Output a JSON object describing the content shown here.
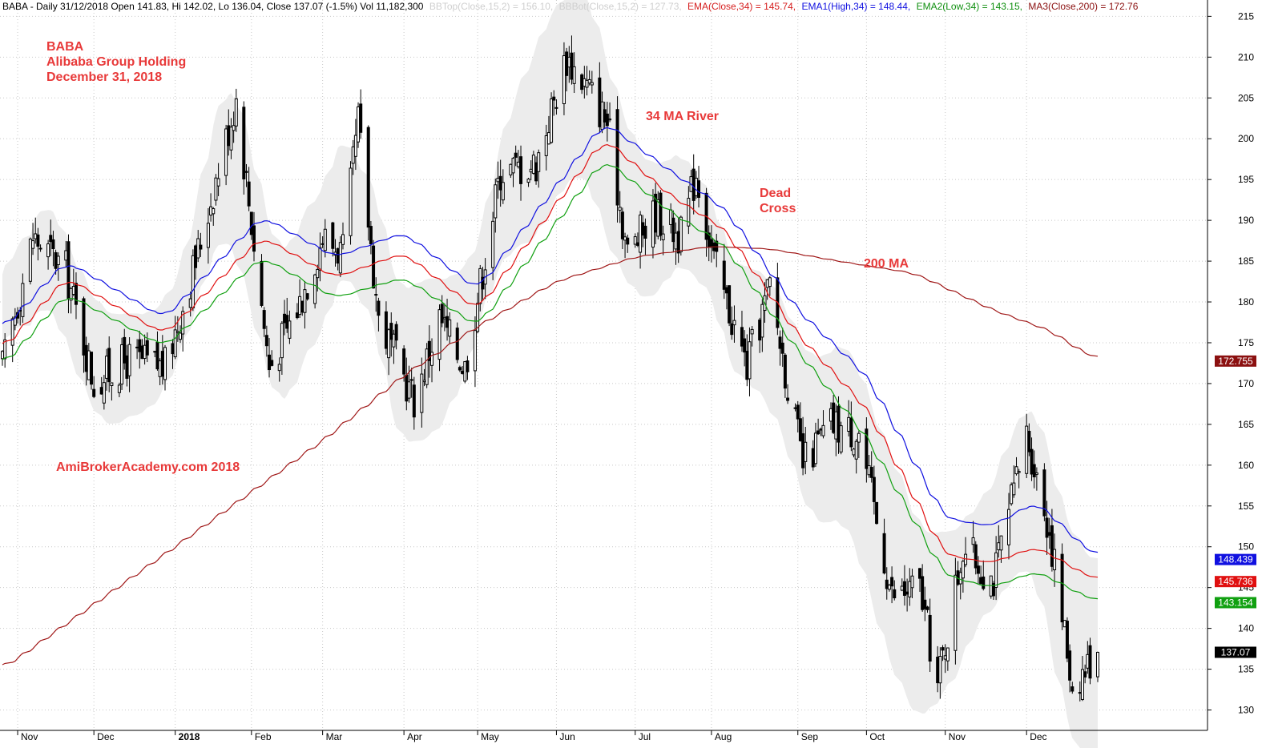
{
  "header": {
    "prefix": "BABA - Daily 31/12/2018 Open 141.83, Hi 142.02, Lo 136.04, Close 137.07 (-1.5%) Vol 11,182,300",
    "parts": [
      {
        "text": "BBTop(Close,15,2) = 156.10,",
        "color": "#cfcfcf"
      },
      {
        "text": "BBBot(Close,15,2) = 127.73,",
        "color": "#cfcfcf"
      },
      {
        "text": "EMA(Close,34) = 145.74,",
        "color": "#d62020"
      },
      {
        "text": "EMA1(High,34) = 148.44,",
        "color": "#1010e0"
      },
      {
        "text": "EMA2(Low,34) = 143.15,",
        "color": "#109010"
      },
      {
        "text": "MA3(Close,200) = 172.76",
        "color": "#8b1010"
      }
    ]
  },
  "annotations": {
    "title_lines": [
      "BABA",
      "Alibaba Group Holding",
      "December 31, 2018"
    ],
    "website": "AmiBrokerAcademy.com  2018",
    "river": "34 MA River",
    "dead_cross_lines": [
      "Dead",
      "Cross"
    ],
    "ma200": "200 MA"
  },
  "colors": {
    "annotation": "#e83a3a",
    "candle": "#000000",
    "band_fill": "#ececec",
    "ema_high": "#1010e0",
    "ema_close": "#e01010",
    "ema_low": "#10a010",
    "ma200": "#a01818"
  },
  "chart_data": {
    "type": "candlestick",
    "period": "Daily",
    "date_range": [
      "2017-10-26",
      "2018-12-31"
    ],
    "ylim": [
      127.5,
      217
    ],
    "y_ticks": [
      130,
      135,
      140,
      145,
      150,
      155,
      160,
      165,
      170,
      175,
      180,
      185,
      190,
      195,
      200,
      205,
      210,
      215
    ],
    "x_labels": [
      {
        "date": "2017-11-01",
        "label": "Nov"
      },
      {
        "date": "2017-12-01",
        "label": "Dec"
      },
      {
        "date": "2018-01-02",
        "label": "2018"
      },
      {
        "date": "2018-02-01",
        "label": "Feb"
      },
      {
        "date": "2018-03-01",
        "label": "Mar"
      },
      {
        "date": "2018-04-02",
        "label": "Apr"
      },
      {
        "date": "2018-05-01",
        "label": "May"
      },
      {
        "date": "2018-06-01",
        "label": "Jun"
      },
      {
        "date": "2018-07-02",
        "label": "Jul"
      },
      {
        "date": "2018-08-01",
        "label": "Aug"
      },
      {
        "date": "2018-09-04",
        "label": "Sep"
      },
      {
        "date": "2018-10-01",
        "label": "Oct"
      },
      {
        "date": "2018-11-01",
        "label": "Nov"
      },
      {
        "date": "2018-12-03",
        "label": "Dec"
      }
    ],
    "last_values": [
      {
        "label": "172.755",
        "value": 172.755,
        "color": "#8b1010"
      },
      {
        "label": "148.439",
        "value": 148.439,
        "color": "#1010e0"
      },
      {
        "label": "145.736",
        "value": 145.736,
        "color": "#e01010"
      },
      {
        "label": "143.154",
        "value": 143.154,
        "color": "#10a010"
      },
      {
        "label": "137.07",
        "value": 137.07,
        "color": "#000000"
      }
    ],
    "close_anchors": [
      {
        "date": "2017-10-26",
        "close": 172
      },
      {
        "date": "2017-11-07",
        "close": 188
      },
      {
        "date": "2017-11-20",
        "close": 184
      },
      {
        "date": "2017-12-01",
        "close": 170
      },
      {
        "date": "2017-12-15",
        "close": 173
      },
      {
        "date": "2017-12-29",
        "close": 172
      },
      {
        "date": "2018-01-10",
        "close": 185
      },
      {
        "date": "2018-01-26",
        "close": 205
      },
      {
        "date": "2018-02-08",
        "close": 172
      },
      {
        "date": "2018-02-20",
        "close": 180
      },
      {
        "date": "2018-03-01",
        "close": 188
      },
      {
        "date": "2018-03-09",
        "close": 186
      },
      {
        "date": "2018-03-15",
        "close": 202
      },
      {
        "date": "2018-03-23",
        "close": 178
      },
      {
        "date": "2018-04-06",
        "close": 168
      },
      {
        "date": "2018-04-16",
        "close": 178
      },
      {
        "date": "2018-04-26",
        "close": 172
      },
      {
        "date": "2018-05-10",
        "close": 196
      },
      {
        "date": "2018-05-24",
        "close": 197
      },
      {
        "date": "2018-06-05",
        "close": 210
      },
      {
        "date": "2018-06-14",
        "close": 206
      },
      {
        "date": "2018-06-21",
        "close": 202
      },
      {
        "date": "2018-06-29",
        "close": 186
      },
      {
        "date": "2018-07-10",
        "close": 191
      },
      {
        "date": "2018-07-20",
        "close": 188
      },
      {
        "date": "2018-07-26",
        "close": 196
      },
      {
        "date": "2018-08-02",
        "close": 185
      },
      {
        "date": "2018-08-15",
        "close": 172
      },
      {
        "date": "2018-08-24",
        "close": 182
      },
      {
        "date": "2018-09-06",
        "close": 160
      },
      {
        "date": "2018-09-17",
        "close": 165
      },
      {
        "date": "2018-09-28",
        "close": 164
      },
      {
        "date": "2018-10-11",
        "close": 144
      },
      {
        "date": "2018-10-22",
        "close": 145
      },
      {
        "date": "2018-10-29",
        "close": 133
      },
      {
        "date": "2018-11-08",
        "close": 150
      },
      {
        "date": "2018-11-20",
        "close": 146
      },
      {
        "date": "2018-11-29",
        "close": 158
      },
      {
        "date": "2018-12-03",
        "close": 164
      },
      {
        "date": "2018-12-12",
        "close": 152
      },
      {
        "date": "2018-12-21",
        "close": 133
      },
      {
        "date": "2018-12-31",
        "close": 137.07
      }
    ],
    "ema_close_anchors": [
      {
        "date": "2017-10-26",
        "value": 174
      },
      {
        "date": "2017-11-20",
        "value": 183
      },
      {
        "date": "2017-12-29",
        "value": 176
      },
      {
        "date": "2018-02-05",
        "value": 188
      },
      {
        "date": "2018-03-06",
        "value": 183
      },
      {
        "date": "2018-04-02",
        "value": 186
      },
      {
        "date": "2018-05-01",
        "value": 179
      },
      {
        "date": "2018-06-20",
        "value": 200
      },
      {
        "date": "2018-07-16",
        "value": 193
      },
      {
        "date": "2018-08-06",
        "value": 189
      },
      {
        "date": "2018-09-04",
        "value": 176
      },
      {
        "date": "2018-10-01",
        "value": 167
      },
      {
        "date": "2018-11-01",
        "value": 149
      },
      {
        "date": "2018-11-19",
        "value": 148
      },
      {
        "date": "2018-12-07",
        "value": 150
      },
      {
        "date": "2018-12-31",
        "value": 145.736
      }
    ],
    "ema_high_anchors": [
      {
        "date": "2017-10-26",
        "value": 176.5
      },
      {
        "date": "2017-11-20",
        "value": 185
      },
      {
        "date": "2017-12-29",
        "value": 178
      },
      {
        "date": "2018-02-05",
        "value": 190.5
      },
      {
        "date": "2018-03-06",
        "value": 185.5
      },
      {
        "date": "2018-04-02",
        "value": 188.5
      },
      {
        "date": "2018-05-01",
        "value": 181.5
      },
      {
        "date": "2018-06-20",
        "value": 202
      },
      {
        "date": "2018-07-16",
        "value": 196
      },
      {
        "date": "2018-08-06",
        "value": 191.5
      },
      {
        "date": "2018-09-04",
        "value": 179
      },
      {
        "date": "2018-10-01",
        "value": 171
      },
      {
        "date": "2018-11-01",
        "value": 153.5
      },
      {
        "date": "2018-11-19",
        "value": 152.5
      },
      {
        "date": "2018-12-07",
        "value": 155.5
      },
      {
        "date": "2018-12-31",
        "value": 148.439
      }
    ],
    "ema_low_anchors": [
      {
        "date": "2017-10-26",
        "value": 172
      },
      {
        "date": "2017-11-20",
        "value": 181
      },
      {
        "date": "2017-12-29",
        "value": 174.5
      },
      {
        "date": "2018-02-05",
        "value": 185.5
      },
      {
        "date": "2018-03-06",
        "value": 180.5
      },
      {
        "date": "2018-04-02",
        "value": 183
      },
      {
        "date": "2018-05-01",
        "value": 177
      },
      {
        "date": "2018-06-20",
        "value": 197.5
      },
      {
        "date": "2018-07-16",
        "value": 191
      },
      {
        "date": "2018-08-06",
        "value": 187
      },
      {
        "date": "2018-09-04",
        "value": 174
      },
      {
        "date": "2018-10-01",
        "value": 163.5
      },
      {
        "date": "2018-11-01",
        "value": 146.5
      },
      {
        "date": "2018-11-19",
        "value": 145
      },
      {
        "date": "2018-12-07",
        "value": 147
      },
      {
        "date": "2018-12-31",
        "value": 143.154
      }
    ],
    "ma200_anchors": [
      {
        "date": "2017-10-26",
        "value": 135
      },
      {
        "date": "2018-01-02",
        "value": 150
      },
      {
        "date": "2018-03-01",
        "value": 163
      },
      {
        "date": "2018-04-02",
        "value": 171
      },
      {
        "date": "2018-05-01",
        "value": 177
      },
      {
        "date": "2018-06-01",
        "value": 182.5
      },
      {
        "date": "2018-07-02",
        "value": 185.5
      },
      {
        "date": "2018-08-01",
        "value": 186.8
      },
      {
        "date": "2018-08-24",
        "value": 186.5
      },
      {
        "date": "2018-09-20",
        "value": 185
      },
      {
        "date": "2018-10-20",
        "value": 183.5
      },
      {
        "date": "2018-11-20",
        "value": 179
      },
      {
        "date": "2018-12-12",
        "value": 176.5
      },
      {
        "date": "2018-12-31",
        "value": 172.755
      }
    ],
    "band_width_anchors": [
      {
        "date": "2017-10-26",
        "value": 8
      },
      {
        "date": "2017-11-08",
        "value": 12
      },
      {
        "date": "2017-12-05",
        "value": 14
      },
      {
        "date": "2018-01-05",
        "value": 10
      },
      {
        "date": "2018-01-26",
        "value": 20
      },
      {
        "date": "2018-02-20",
        "value": 18
      },
      {
        "date": "2018-03-16",
        "value": 16
      },
      {
        "date": "2018-04-12",
        "value": 20
      },
      {
        "date": "2018-05-02",
        "value": 10
      },
      {
        "date": "2018-05-25",
        "value": 24
      },
      {
        "date": "2018-06-20",
        "value": 22
      },
      {
        "date": "2018-07-16",
        "value": 14
      },
      {
        "date": "2018-08-02",
        "value": 12
      },
      {
        "date": "2018-08-27",
        "value": 16
      },
      {
        "date": "2018-09-12",
        "value": 20
      },
      {
        "date": "2018-10-15",
        "value": 26
      },
      {
        "date": "2018-11-15",
        "value": 14
      },
      {
        "date": "2018-12-31",
        "value": 28
      }
    ]
  }
}
